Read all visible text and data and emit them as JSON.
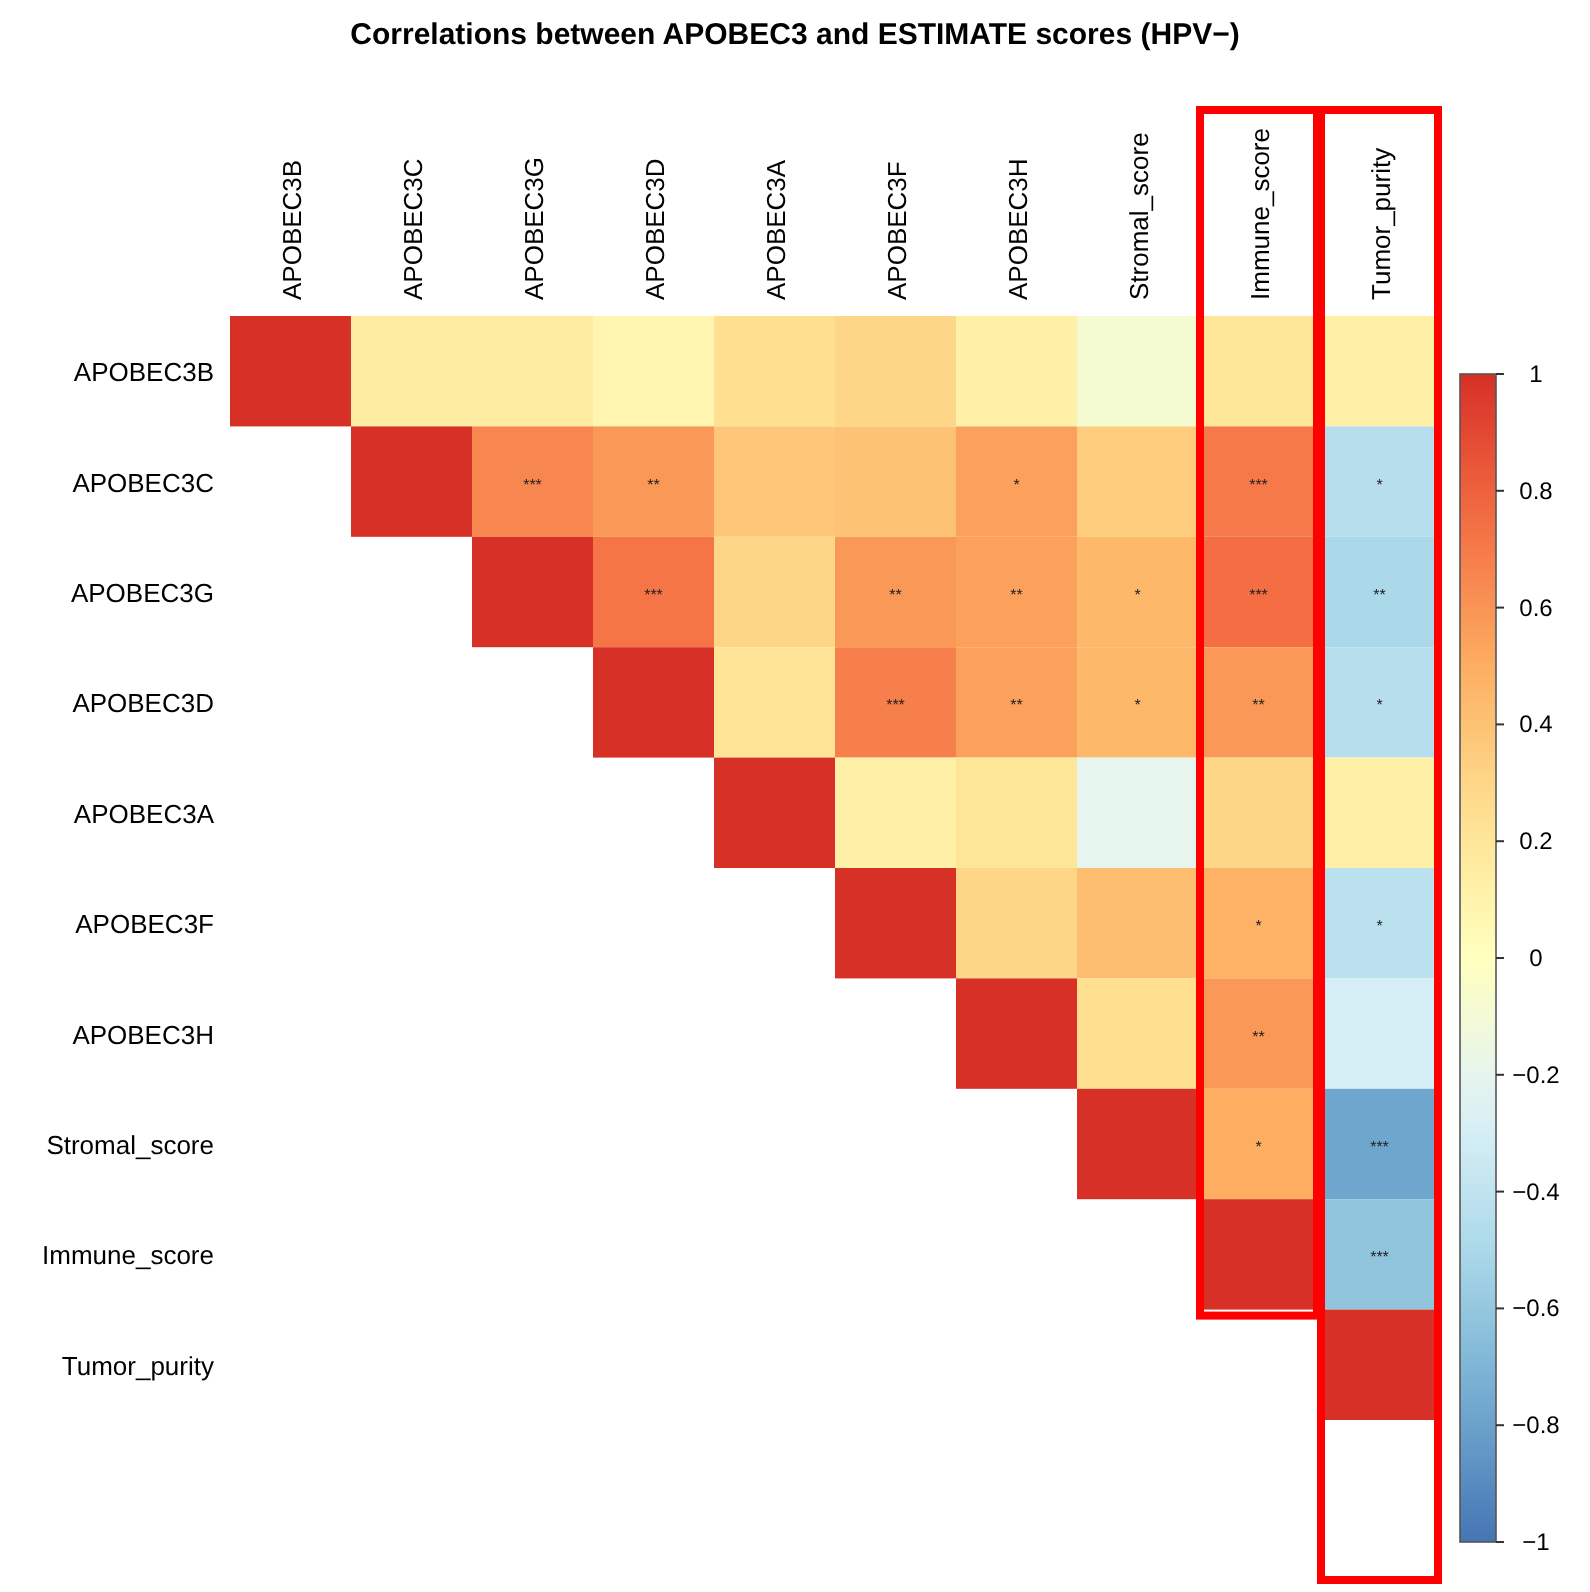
{
  "chart_data": {
    "type": "heatmap",
    "title": "Correlations between APOBEC3 and ESTIMATE scores (HPV−)",
    "categories": [
      "APOBEC3B",
      "APOBEC3C",
      "APOBEC3G",
      "APOBEC3D",
      "APOBEC3A",
      "APOBEC3F",
      "APOBEC3H",
      "Stromal_score",
      "Immune_score",
      "Tumor_purity"
    ],
    "y_categories": [
      "APOBEC3B",
      "APOBEC3C",
      "APOBEC3G",
      "APOBEC3D",
      "APOBEC3A",
      "APOBEC3F",
      "APOBEC3H",
      "Stromal_score",
      "Immune_score",
      "Tumor_purity"
    ],
    "cells": [
      [
        1,
        0.15,
        0.15,
        0.08,
        0.25,
        0.3,
        0.12,
        -0.08,
        0.2,
        0.12
      ],
      [
        null,
        1,
        0.65,
        0.58,
        0.38,
        0.4,
        0.55,
        0.35,
        0.7,
        -0.45
      ],
      [
        null,
        null,
        1,
        0.72,
        0.3,
        0.58,
        0.55,
        0.45,
        0.75,
        -0.5
      ],
      [
        null,
        null,
        null,
        1,
        0.22,
        0.68,
        0.55,
        0.45,
        0.58,
        -0.45
      ],
      [
        null,
        null,
        null,
        null,
        1,
        0.12,
        0.2,
        -0.2,
        0.3,
        0.12
      ],
      [
        null,
        null,
        null,
        null,
        null,
        1,
        0.3,
        0.42,
        0.48,
        -0.42
      ],
      [
        null,
        null,
        null,
        null,
        null,
        null,
        1,
        0.25,
        0.58,
        -0.3
      ],
      [
        null,
        null,
        null,
        null,
        null,
        null,
        null,
        1,
        0.5,
        -0.78
      ],
      [
        null,
        null,
        null,
        null,
        null,
        null,
        null,
        null,
        1,
        -0.62
      ],
      [
        null,
        null,
        null,
        null,
        null,
        null,
        null,
        null,
        null,
        1
      ]
    ],
    "cell_labels": [
      [
        null,
        null,
        null,
        null,
        null,
        null,
        null,
        null,
        null,
        null
      ],
      [
        null,
        null,
        "***",
        "**",
        null,
        null,
        "*",
        null,
        "***",
        "*"
      ],
      [
        null,
        null,
        null,
        "***",
        null,
        "**",
        "**",
        "*",
        "***",
        "**"
      ],
      [
        null,
        null,
        null,
        null,
        null,
        "***",
        "**",
        "*",
        "**",
        "*"
      ],
      [
        null,
        null,
        null,
        null,
        null,
        null,
        null,
        null,
        null,
        null
      ],
      [
        null,
        null,
        null,
        null,
        null,
        null,
        null,
        null,
        "*",
        "*"
      ],
      [
        null,
        null,
        null,
        null,
        null,
        null,
        null,
        null,
        "**",
        null
      ],
      [
        null,
        null,
        null,
        null,
        null,
        null,
        null,
        null,
        "*",
        "***"
      ],
      [
        null,
        null,
        null,
        null,
        null,
        null,
        null,
        null,
        null,
        "***"
      ],
      [
        null,
        null,
        null,
        null,
        null,
        null,
        null,
        null,
        null,
        null
      ]
    ],
    "clim": [
      -1,
      1
    ],
    "cticks": [
      {
        "value": 1,
        "label": "1"
      },
      {
        "value": 0.8,
        "label": "0.8"
      },
      {
        "value": 0.6,
        "label": "0.6"
      },
      {
        "value": 0.4,
        "label": "0.4"
      },
      {
        "value": 0.2,
        "label": "0.2"
      },
      {
        "value": 0,
        "label": "0"
      },
      {
        "value": -0.2,
        "label": "−0.2"
      },
      {
        "value": -0.4,
        "label": "−0.4"
      },
      {
        "value": -0.6,
        "label": "−0.6"
      },
      {
        "value": -0.8,
        "label": "−0.8"
      },
      {
        "value": -1,
        "label": "−1"
      }
    ]
  }
}
